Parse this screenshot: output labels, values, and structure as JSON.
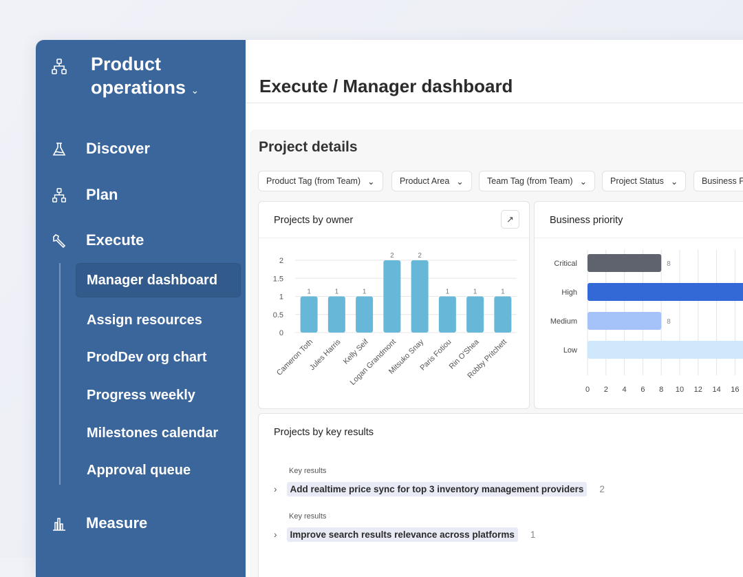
{
  "sidebar": {
    "workspace": "Product operations",
    "nav": [
      {
        "label": "Discover",
        "icon": "flask-icon"
      },
      {
        "label": "Plan",
        "icon": "hierarchy-icon"
      },
      {
        "label": "Execute",
        "icon": "wrench-icon"
      },
      {
        "label": "Measure",
        "icon": "bar-chart-icon"
      }
    ],
    "execute_items": [
      {
        "label": "Manager dashboard",
        "active": true
      },
      {
        "label": "Assign resources"
      },
      {
        "label": "ProdDev org chart"
      },
      {
        "label": "Progress weekly"
      },
      {
        "label": "Milestones calendar"
      },
      {
        "label": "Approval queue"
      }
    ],
    "color": "#3b669b"
  },
  "header": {
    "title": "Execute / Manager dashboard"
  },
  "section": {
    "title": "Project details"
  },
  "filters": [
    "Product Tag (from Team)",
    "Product Area",
    "Team Tag (from Team)",
    "Project Status",
    "Business P"
  ],
  "cards": {
    "owner": {
      "title": "Projects by owner"
    },
    "priority": {
      "title": "Business priority"
    },
    "key_results": {
      "title": "Projects by key results"
    }
  },
  "chart_data": [
    {
      "type": "bar",
      "title": "Projects by owner",
      "categories": [
        "Cameron Toth",
        "Jules Harris",
        "Kelly Seif",
        "Logan Grandmont",
        "Mitsuko Snay",
        "Paris Fotiou",
        "Rin O'Shea",
        "Robby Pritchett"
      ],
      "values": [
        1,
        1,
        1,
        2,
        2,
        1,
        1,
        1
      ],
      "yticks": [
        "0",
        "0.5",
        "1",
        "1.5",
        "2"
      ],
      "ylim": [
        0,
        2
      ],
      "grid": true,
      "color": "#67b8d8"
    },
    {
      "type": "bar",
      "orientation": "horizontal",
      "title": "Business priority",
      "categories": [
        "Critical",
        "High",
        "Medium",
        "Low"
      ],
      "values": [
        8,
        null,
        8,
        null
      ],
      "data_labels": [
        "8",
        "",
        "8",
        ""
      ],
      "xticks": [
        "0",
        "2",
        "4",
        "6",
        "8",
        "10",
        "12",
        "14",
        "16"
      ],
      "grid": true,
      "colors": [
        "#5f636e",
        "#3269d6",
        "#a5c3f8",
        "#cfe8fb"
      ]
    }
  ],
  "key_results": [
    {
      "label": "Key results",
      "value": "Add realtime price sync for top 3 inventory management providers",
      "count": "2"
    },
    {
      "label": "Key results",
      "value": "Improve search results relevance across platforms",
      "count": "1"
    }
  ]
}
